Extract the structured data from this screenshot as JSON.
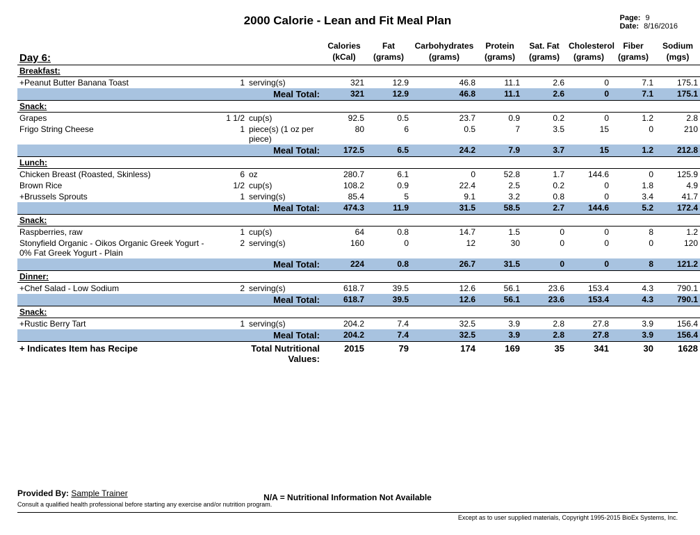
{
  "title": "2000 Calorie - Lean and Fit Meal Plan",
  "page_label": "Page:",
  "page_num": "9",
  "date_label": "Date:",
  "date_val": "8/16/2016",
  "day_label": "Day 6:",
  "columns": {
    "cal": "Calories",
    "cal2": "(kCal)",
    "fat": "Fat",
    "fat2": "(grams)",
    "carb": "Carbohydrates",
    "carb2": "(grams)",
    "prot": "Protein",
    "prot2": "(grams)",
    "sfat": "Sat. Fat",
    "sfat2": "(grams)",
    "chol": "Cholesterol",
    "chol2": "(grams)",
    "fib": "Fiber",
    "fib2": "(grams)",
    "sod": "Sodium",
    "sod2": "(mgs)"
  },
  "meal_total_label": "Meal Total:",
  "meals": [
    {
      "name": "Breakfast:",
      "items": [
        {
          "name": "+Peanut Butter Banana Toast",
          "qty": "1",
          "unit": "serving(s)",
          "n": [
            "321",
            "12.9",
            "46.8",
            "11.1",
            "2.6",
            "0",
            "7.1",
            "175.1"
          ]
        }
      ],
      "total": [
        "321",
        "12.9",
        "46.8",
        "11.1",
        "2.6",
        "0",
        "7.1",
        "175.1"
      ]
    },
    {
      "name": "Snack:",
      "items": [
        {
          "name": "Grapes",
          "qty": "1 1/2",
          "unit": "cup(s)",
          "n": [
            "92.5",
            "0.5",
            "23.7",
            "0.9",
            "0.2",
            "0",
            "1.2",
            "2.8"
          ]
        },
        {
          "name": "Frigo String Cheese",
          "qty": "1",
          "unit": "piece(s) (1 oz per piece)",
          "n": [
            "80",
            "6",
            "0.5",
            "7",
            "3.5",
            "15",
            "0",
            "210"
          ]
        }
      ],
      "total": [
        "172.5",
        "6.5",
        "24.2",
        "7.9",
        "3.7",
        "15",
        "1.2",
        "212.8"
      ]
    },
    {
      "name": "Lunch:",
      "items": [
        {
          "name": "Chicken Breast (Roasted, Skinless)",
          "qty": "6",
          "unit": "oz",
          "n": [
            "280.7",
            "6.1",
            "0",
            "52.8",
            "1.7",
            "144.6",
            "0",
            "125.9"
          ]
        },
        {
          "name": "Brown Rice",
          "qty": "1/2",
          "unit": "cup(s)",
          "n": [
            "108.2",
            "0.9",
            "22.4",
            "2.5",
            "0.2",
            "0",
            "1.8",
            "4.9"
          ]
        },
        {
          "name": "+Brussels Sprouts",
          "qty": "1",
          "unit": "serving(s)",
          "n": [
            "85.4",
            "5",
            "9.1",
            "3.2",
            "0.8",
            "0",
            "3.4",
            "41.7"
          ]
        }
      ],
      "total": [
        "474.3",
        "11.9",
        "31.5",
        "58.5",
        "2.7",
        "144.6",
        "5.2",
        "172.4"
      ]
    },
    {
      "name": "Snack:",
      "items": [
        {
          "name": "Raspberries, raw",
          "qty": "1",
          "unit": "cup(s)",
          "n": [
            "64",
            "0.8",
            "14.7",
            "1.5",
            "0",
            "0",
            "8",
            "1.2"
          ]
        },
        {
          "name": "Stonyfield Organic - Oikos Organic Greek Yogurt - 0% Fat Greek Yogurt - Plain",
          "qty": "2",
          "unit": "serving(s)",
          "n": [
            "160",
            "0",
            "12",
            "30",
            "0",
            "0",
            "0",
            "120"
          ]
        }
      ],
      "total": [
        "224",
        "0.8",
        "26.7",
        "31.5",
        "0",
        "0",
        "8",
        "121.2"
      ]
    },
    {
      "name": "Dinner:",
      "items": [
        {
          "name": "+Chef Salad - Low Sodium",
          "qty": "2",
          "unit": "serving(s)",
          "n": [
            "618.7",
            "39.5",
            "12.6",
            "56.1",
            "23.6",
            "153.4",
            "4.3",
            "790.1"
          ]
        }
      ],
      "total": [
        "618.7",
        "39.5",
        "12.6",
        "56.1",
        "23.6",
        "153.4",
        "4.3",
        "790.1"
      ]
    },
    {
      "name": "Snack:",
      "items": [
        {
          "name": "+Rustic Berry Tart",
          "qty": "1",
          "unit": "serving(s)",
          "n": [
            "204.2",
            "7.4",
            "32.5",
            "3.9",
            "2.8",
            "27.8",
            "3.9",
            "156.4"
          ]
        }
      ],
      "total": [
        "204.2",
        "7.4",
        "32.5",
        "3.9",
        "2.8",
        "27.8",
        "3.9",
        "156.4"
      ]
    }
  ],
  "recipe_note": "+ Indicates Item has Recipe",
  "grand_label": "Total Nutritional Values:",
  "grand": [
    "2015",
    "79",
    "174",
    "169",
    "35",
    "341",
    "30",
    "1628"
  ],
  "provided_label": "Provided By:",
  "provided_val": "Sample Trainer",
  "na_note": "N/A = Nutritional Information Not Available",
  "consult": "Consult a qualified health professional before starting any exercise and/or nutrition program.",
  "copyright": "Except as to user supplied materials, Copyright 1995-2015 BioEx Systems, Inc."
}
